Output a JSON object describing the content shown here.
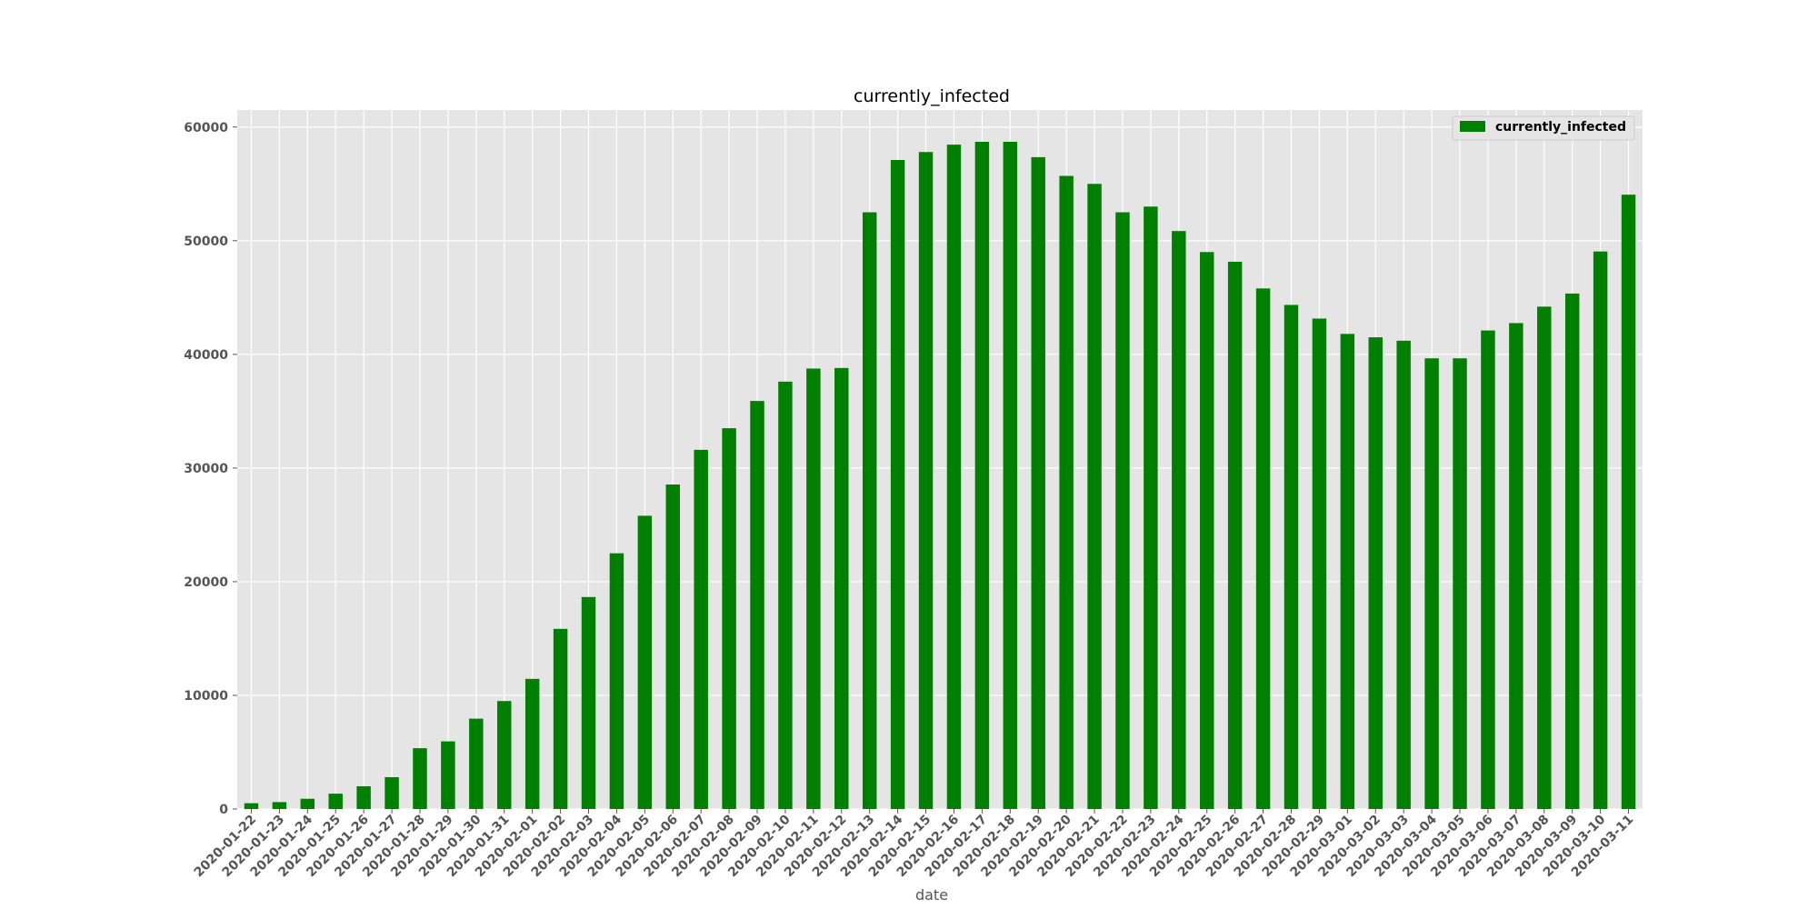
{
  "chart_data": {
    "type": "bar",
    "title": "currently_infected",
    "xlabel": "date",
    "ylabel": "",
    "ylim": [
      0,
      61500
    ],
    "yticks": [
      0,
      10000,
      20000,
      30000,
      40000,
      50000,
      60000
    ],
    "grid": true,
    "legend_position": "top-right",
    "categories": [
      "2020-01-22",
      "2020-01-23",
      "2020-01-24",
      "2020-01-25",
      "2020-01-26",
      "2020-01-27",
      "2020-01-28",
      "2020-01-29",
      "2020-01-30",
      "2020-01-31",
      "2020-02-01",
      "2020-02-02",
      "2020-02-03",
      "2020-02-04",
      "2020-02-05",
      "2020-02-06",
      "2020-02-07",
      "2020-02-08",
      "2020-02-09",
      "2020-02-10",
      "2020-02-11",
      "2020-02-12",
      "2020-02-13",
      "2020-02-14",
      "2020-02-15",
      "2020-02-16",
      "2020-02-17",
      "2020-02-18",
      "2020-02-19",
      "2020-02-20",
      "2020-02-21",
      "2020-02-22",
      "2020-02-23",
      "2020-02-24",
      "2020-02-25",
      "2020-02-26",
      "2020-02-27",
      "2020-02-28",
      "2020-02-29",
      "2020-03-01",
      "2020-03-02",
      "2020-03-03",
      "2020-03-04",
      "2020-03-05",
      "2020-03-06",
      "2020-03-07",
      "2020-03-08",
      "2020-03-09",
      "2020-03-10",
      "2020-03-11"
    ],
    "series": [
      {
        "name": "currently_infected",
        "color": "#008000",
        "values": [
          510,
          610,
          900,
          1350,
          2000,
          2800,
          5350,
          5950,
          7950,
          9500,
          11450,
          15850,
          18650,
          22500,
          25800,
          28550,
          31600,
          33500,
          35900,
          37600,
          38750,
          38800,
          52500,
          57100,
          57800,
          58450,
          58700,
          58700,
          57350,
          55700,
          55000,
          52500,
          53000,
          50850,
          49000,
          48150,
          45800,
          44350,
          43150,
          41800,
          41500,
          41200,
          39650,
          39650,
          42100,
          42750,
          44200,
          45350,
          49050,
          54050
        ]
      }
    ]
  }
}
